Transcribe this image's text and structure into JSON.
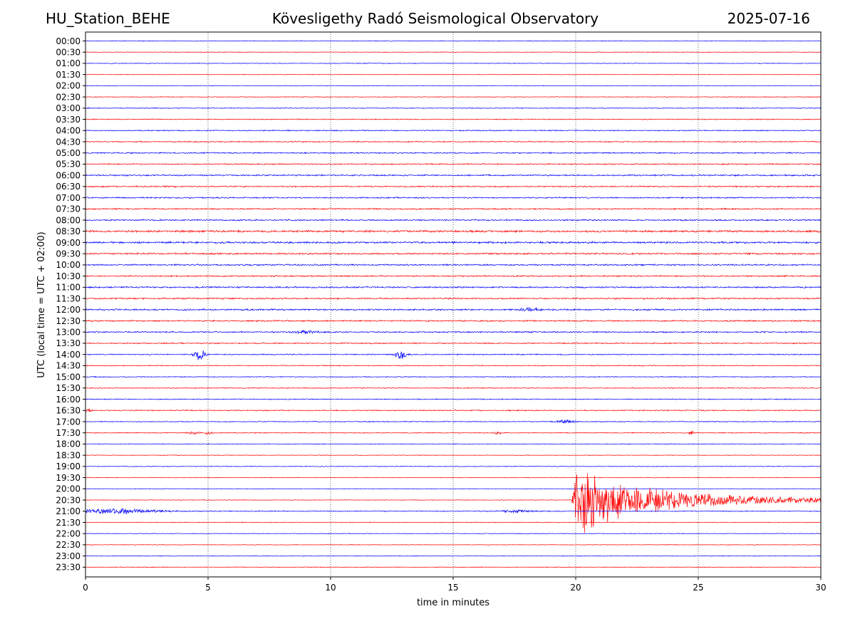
{
  "header": {
    "station": "HU_Station_BEHE",
    "observatory": "Kövesligethy Radó Seismological Observatory",
    "date": "2025-07-16"
  },
  "chart_data": {
    "type": "line",
    "title": "Kövesligethy Radó Seismological Observatory",
    "xlabel": "time in minutes",
    "ylabel": "UTC (local time = UTC + 02:00)",
    "xlim": [
      0,
      30
    ],
    "x_ticks": [
      "0",
      "5",
      "10",
      "15",
      "20",
      "25",
      "30"
    ],
    "grid": "vertical dotted lines at 5-minute intervals",
    "trace_colors": [
      "#0000ff",
      "#ff0000"
    ],
    "row_labels": [
      "00:00",
      "00:30",
      "01:00",
      "01:30",
      "02:00",
      "02:30",
      "03:00",
      "03:30",
      "04:00",
      "04:30",
      "05:00",
      "05:30",
      "06:00",
      "06:30",
      "07:00",
      "07:30",
      "08:00",
      "08:30",
      "09:00",
      "09:30",
      "10:00",
      "10:30",
      "11:00",
      "11:30",
      "12:00",
      "12:30",
      "13:00",
      "13:30",
      "14:00",
      "14:30",
      "15:00",
      "15:30",
      "16:00",
      "16:30",
      "17:00",
      "17:30",
      "18:00",
      "18:30",
      "19:00",
      "19:30",
      "20:00",
      "20:30",
      "21:00",
      "21:30",
      "22:00",
      "22:30",
      "23:00",
      "23:30"
    ],
    "base_noise": [
      0.08,
      0.07,
      0.08,
      0.06,
      0.07,
      0.08,
      0.09,
      0.1,
      0.12,
      0.12,
      0.14,
      0.14,
      0.16,
      0.15,
      0.14,
      0.15,
      0.16,
      0.22,
      0.2,
      0.18,
      0.17,
      0.15,
      0.17,
      0.16,
      0.18,
      0.16,
      0.15,
      0.13,
      0.12,
      0.1,
      0.1,
      0.1,
      0.1,
      0.12,
      0.1,
      0.1,
      0.08,
      0.07,
      0.08,
      0.07,
      0.06,
      0.07,
      0.1,
      0.08,
      0.07,
      0.07,
      0.07,
      0.08
    ],
    "events": [
      {
        "row": "14:00",
        "t": 4.65,
        "amp": 1.6,
        "dur": 0.3
      },
      {
        "row": "14:00",
        "t": 12.85,
        "amp": 1.3,
        "dur": 0.3
      },
      {
        "row": "12:00",
        "t": 18.2,
        "amp": 0.4,
        "dur": 0.6
      },
      {
        "row": "13:00",
        "t": 9.0,
        "amp": 0.3,
        "dur": 0.8
      },
      {
        "row": "16:30",
        "t": 0.1,
        "amp": 0.5,
        "dur": 0.2
      },
      {
        "row": "17:00",
        "t": 19.6,
        "amp": 0.45,
        "dur": 0.5
      },
      {
        "row": "17:30",
        "t": 4.4,
        "amp": 0.35,
        "dur": 0.3
      },
      {
        "row": "17:30",
        "t": 5.0,
        "amp": 0.45,
        "dur": 0.2
      },
      {
        "row": "17:30",
        "t": 16.8,
        "amp": 0.3,
        "dur": 0.2
      },
      {
        "row": "17:30",
        "t": 24.7,
        "amp": 0.45,
        "dur": 0.15
      },
      {
        "row": "21:00",
        "t": 1.2,
        "amp": 0.6,
        "dur": 2.5
      },
      {
        "row": "21:00",
        "t": 17.5,
        "amp": 0.3,
        "dur": 1.0
      }
    ],
    "earthquake": {
      "row": "20:30",
      "start_min": 19.85,
      "peak_amp": 12.0,
      "decay_min": 2.4
    }
  }
}
